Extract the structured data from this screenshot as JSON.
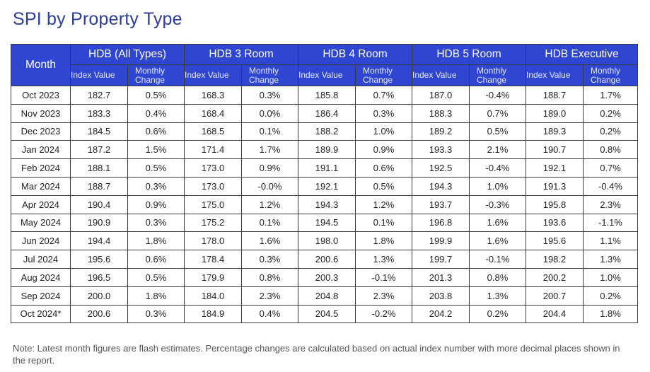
{
  "title": "SPI by Property Type",
  "table": {
    "month_header": "Month",
    "groups": [
      "HDB (All Types)",
      "HDB 3 Room",
      "HDB 4 Room",
      "HDB 5 Room",
      "HDB Executive"
    ],
    "sub_index": "Index Value",
    "sub_change": "Monthly Change",
    "rows": [
      [
        "Oct 2023",
        "182.7",
        "0.5%",
        "168.3",
        "0.3%",
        "185.8",
        "0.7%",
        "187.0",
        "-0.4%",
        "188.7",
        "1.7%"
      ],
      [
        "Nov 2023",
        "183.3",
        "0.4%",
        "168.4",
        "0.0%",
        "186.4",
        "0.3%",
        "188.3",
        "0.7%",
        "189.0",
        "0.2%"
      ],
      [
        "Dec 2023",
        "184.5",
        "0.6%",
        "168.5",
        "0.1%",
        "188.2",
        "1.0%",
        "189.2",
        "0.5%",
        "189.3",
        "0.2%"
      ],
      [
        "Jan 2024",
        "187.2",
        "1.5%",
        "171.4",
        "1.7%",
        "189.9",
        "0.9%",
        "193.3",
        "2.1%",
        "190.7",
        "0.8%"
      ],
      [
        "Feb 2024",
        "188.1",
        "0.5%",
        "173.0",
        "0.9%",
        "191.1",
        "0.6%",
        "192.5",
        "-0.4%",
        "192.1",
        "0.7%"
      ],
      [
        "Mar 2024",
        "188.7",
        "0.3%",
        "173.0",
        "-0.0%",
        "192.1",
        "0.5%",
        "194.3",
        "1.0%",
        "191.3",
        "-0.4%"
      ],
      [
        "Apr 2024",
        "190.4",
        "0.9%",
        "175.0",
        "1.2%",
        "194.3",
        "1.2%",
        "193.7",
        "-0.3%",
        "195.8",
        "2.3%"
      ],
      [
        "May 2024",
        "190.9",
        "0.3%",
        "175.2",
        "0.1%",
        "194.5",
        "0.1%",
        "196.8",
        "1.6%",
        "193.6",
        "-1.1%"
      ],
      [
        "Jun 2024",
        "194.4",
        "1.8%",
        "178.0",
        "1.6%",
        "198.0",
        "1.8%",
        "199.9",
        "1.6%",
        "195.6",
        "1.1%"
      ],
      [
        "Jul 2024",
        "195.6",
        "0.6%",
        "178.4",
        "0.3%",
        "200.6",
        "1.3%",
        "199.7",
        "-0.1%",
        "198.2",
        "1.3%"
      ],
      [
        "Aug 2024",
        "196.5",
        "0.5%",
        "179.9",
        "0.8%",
        "200.3",
        "-0.1%",
        "201.3",
        "0.8%",
        "200.2",
        "1.0%"
      ],
      [
        "Sep 2024",
        "200.0",
        "1.8%",
        "184.0",
        "2.3%",
        "204.8",
        "2.3%",
        "203.8",
        "1.3%",
        "200.7",
        "0.2%"
      ],
      [
        "Oct 2024*",
        "200.6",
        "0.3%",
        "184.9",
        "0.4%",
        "204.5",
        "-0.2%",
        "204.2",
        "0.2%",
        "204.4",
        "1.8%"
      ]
    ]
  },
  "note": "Note: Latest month figures are flash estimates. Percentage changes are calculated based on actual index number with more decimal places shown in the report.",
  "colors": {
    "title": "#2b3d9c",
    "header_bg": "#2f46d2",
    "header_text": "#ffffff"
  }
}
